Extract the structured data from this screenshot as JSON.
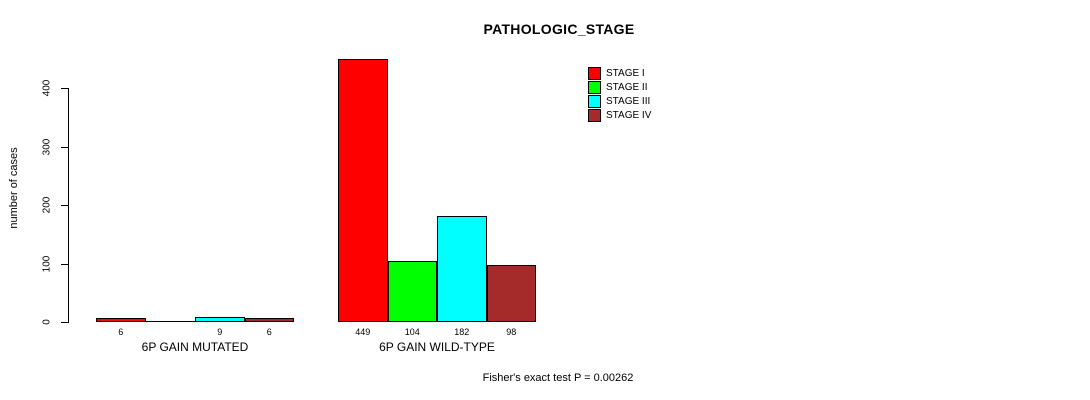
{
  "chart_data": {
    "type": "bar",
    "title": "PATHOLOGIC_STAGE",
    "categories": [
      "6P GAIN MUTATED",
      "6P GAIN WILD-TYPE"
    ],
    "series": [
      {
        "name": "STAGE I",
        "color": "#ff0000",
        "values": [
          6,
          449
        ]
      },
      {
        "name": "STAGE II",
        "color": "#00ff00",
        "values": [
          0,
          104
        ]
      },
      {
        "name": "STAGE III",
        "color": "#00ffff",
        "values": [
          9,
          182
        ]
      },
      {
        "name": "STAGE IV",
        "color": "#a52a2a",
        "values": [
          6,
          98
        ]
      }
    ],
    "ylabel": "number of cases",
    "xlabel": "",
    "yticks": [
      0,
      100,
      200,
      300,
      400
    ],
    "ylim": [
      0,
      449
    ],
    "grid": false,
    "legend_position": "top-right",
    "bar_value_labels": true,
    "zero_bars_drawn_as_line": true,
    "annotation": "Fisher's exact test P = 0.00262"
  },
  "colors": {
    "axis": "#000000",
    "text": "#000000",
    "background": "#ffffff"
  }
}
